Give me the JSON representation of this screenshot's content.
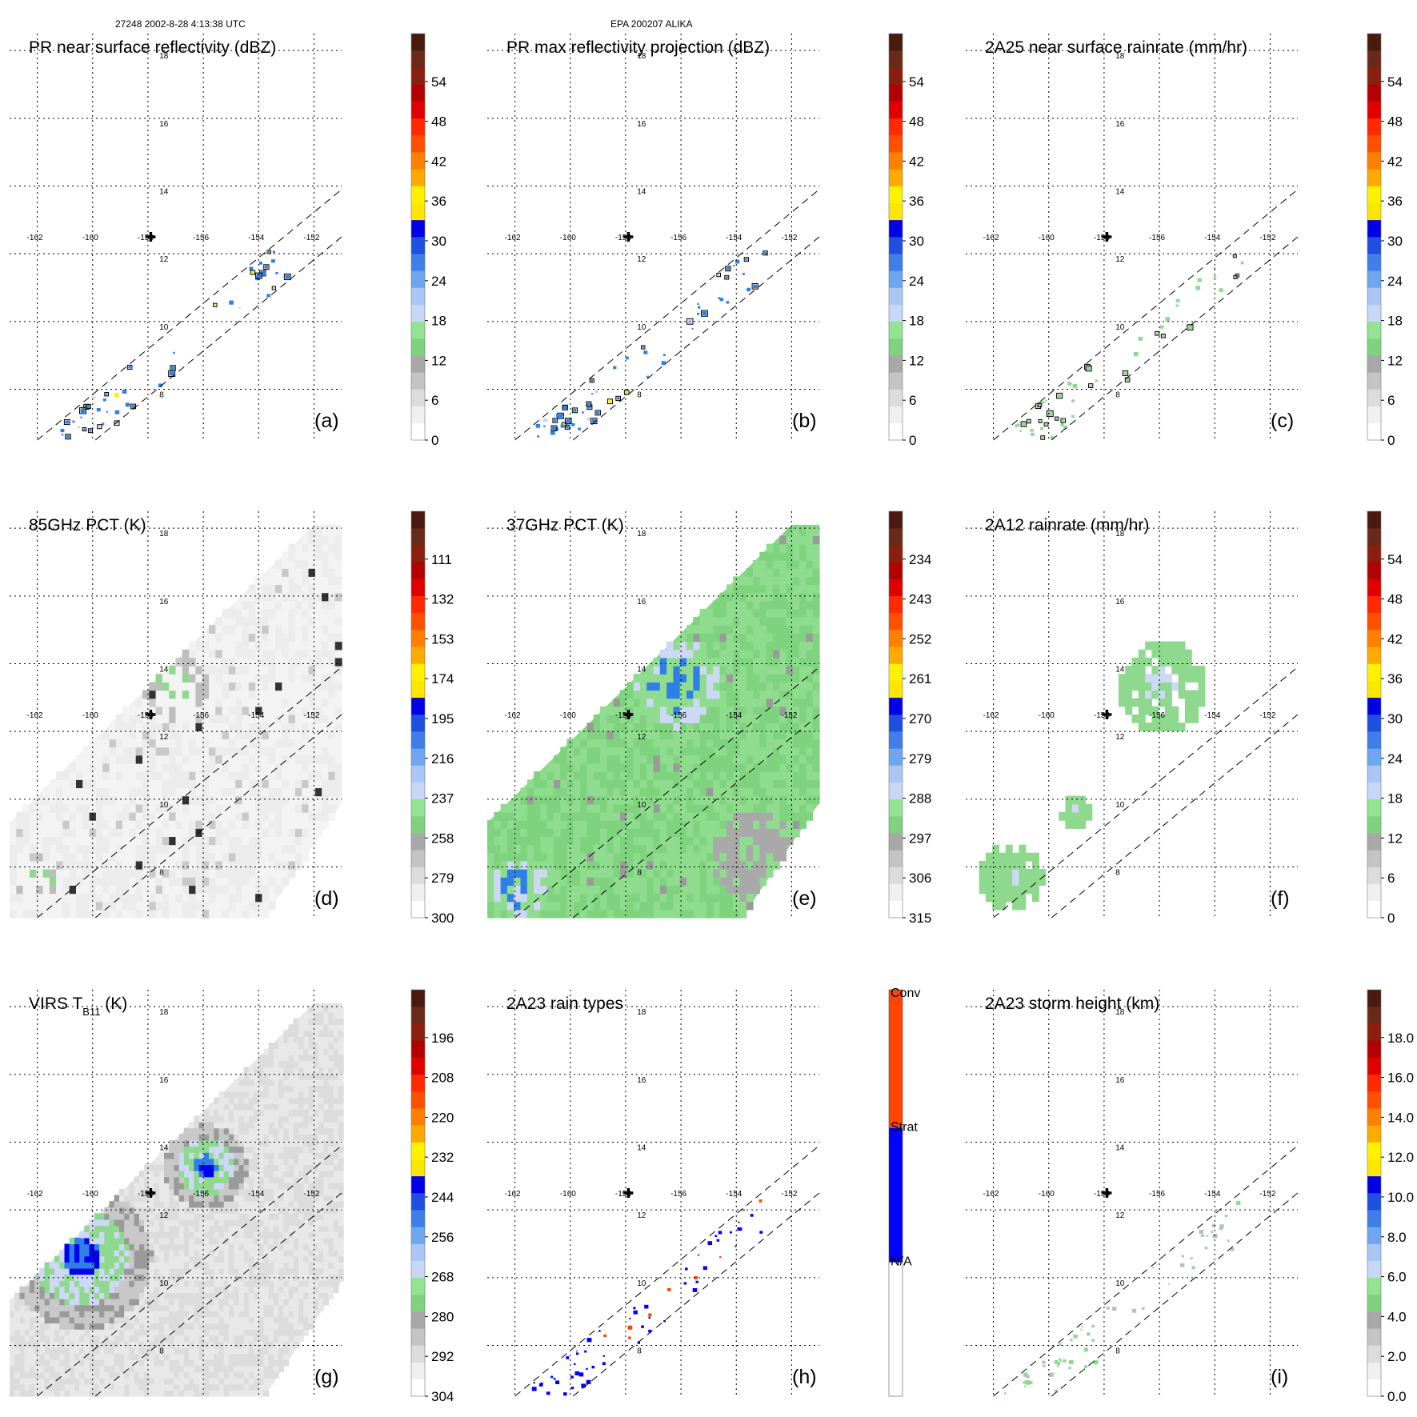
{
  "header": {
    "orbit_time": "27248 2002-8-28 4:13:38 UTC",
    "storm": "EPA 200207 ALIKA"
  },
  "chart_data": [
    {
      "type": "heatmap",
      "panel": "a",
      "title": "PR near surface reflectivity (dBZ)",
      "colorbar_ticks": [
        "0",
        "6",
        "12",
        "18",
        "24",
        "30",
        "36",
        "42",
        "48",
        "54"
      ],
      "field": "reflectivity",
      "coverage": "pr"
    },
    {
      "type": "heatmap",
      "panel": "b",
      "title": "PR max reflectivity projection (dBZ)",
      "colorbar_ticks": [
        "0",
        "6",
        "12",
        "18",
        "24",
        "30",
        "36",
        "42",
        "48",
        "54"
      ],
      "field": "reflectivity",
      "coverage": "pr"
    },
    {
      "type": "heatmap",
      "panel": "c",
      "title": "2A25 near surface rainrate (mm/hr)",
      "colorbar_ticks": [
        "0",
        "6",
        "12",
        "18",
        "24",
        "30",
        "36",
        "42",
        "48",
        "54"
      ],
      "field": "rainrate",
      "coverage": "pr"
    },
    {
      "type": "heatmap",
      "panel": "d",
      "title": "85GHz PCT (K)",
      "colorbar_ticks": [
        "300",
        "279",
        "258",
        "237",
        "216",
        "195",
        "174",
        "153",
        "132",
        "111"
      ],
      "field": "pct85",
      "coverage": "tmi"
    },
    {
      "type": "heatmap",
      "panel": "e",
      "title": "37GHz PCT (K)",
      "colorbar_ticks": [
        "315",
        "306",
        "297",
        "288",
        "279",
        "270",
        "261",
        "252",
        "243",
        "234"
      ],
      "field": "pct37",
      "coverage": "tmi"
    },
    {
      "type": "heatmap",
      "panel": "f",
      "title": "2A12 rainrate (mm/hr)",
      "colorbar_ticks": [
        "0",
        "6",
        "12",
        "18",
        "24",
        "30",
        "36",
        "42",
        "48",
        "54"
      ],
      "field": "rain2a12",
      "coverage": "tmi"
    },
    {
      "type": "heatmap",
      "panel": "g",
      "title": "VIRS T",
      "title_sub": "B11",
      "title_end": " (K)",
      "colorbar_ticks": [
        "304",
        "292",
        "280",
        "268",
        "256",
        "244",
        "232",
        "220",
        "208",
        "196"
      ],
      "field": "virs",
      "coverage": "tmi"
    },
    {
      "type": "heatmap",
      "panel": "h",
      "title": "2A23 rain types",
      "colorbar_ticks": [
        "N/A",
        "Strat",
        "Conv"
      ],
      "field": "raintype",
      "coverage": "pr"
    },
    {
      "type": "heatmap",
      "panel": "i",
      "title": "2A23 storm height (km)",
      "colorbar_ticks": [
        "0.0",
        "2.0",
        "4.0",
        "6.0",
        "8.0",
        "10.0",
        "12.0",
        "14.0",
        "16.0",
        "18.0"
      ],
      "field": "height",
      "coverage": "pr"
    }
  ],
  "axes": {
    "lon_labels": [
      "-162",
      "-160",
      "-158",
      "-156",
      "-154",
      "-152"
    ],
    "lat_labels": [
      "8",
      "10",
      "12",
      "14",
      "16",
      "18"
    ],
    "lon_range": [
      -163,
      -151
    ],
    "lat_range": [
      6.5,
      18.5
    ],
    "storm_center": [
      -157.9,
      12.5
    ],
    "grid": true
  },
  "panel_labels": [
    "(a)",
    "(b)",
    "(c)",
    "(d)",
    "(e)",
    "(f)",
    "(g)",
    "(h)",
    "(i)"
  ],
  "palettes": {
    "main": [
      "#ffffff",
      "#c8c8c8",
      "#8fd98f",
      "#cdd8f5",
      "#2f7fe8",
      "#0000ee",
      "#ffee00",
      "#ff8c00",
      "#ff2a00",
      "#b80000",
      "#7a2a1a"
    ],
    "gray": [
      "#f4f4f4",
      "#dcdcdc",
      "#aaaaaa"
    ],
    "rain_types": [
      "#ffffff",
      "#0000ff",
      "#ff4400"
    ]
  }
}
